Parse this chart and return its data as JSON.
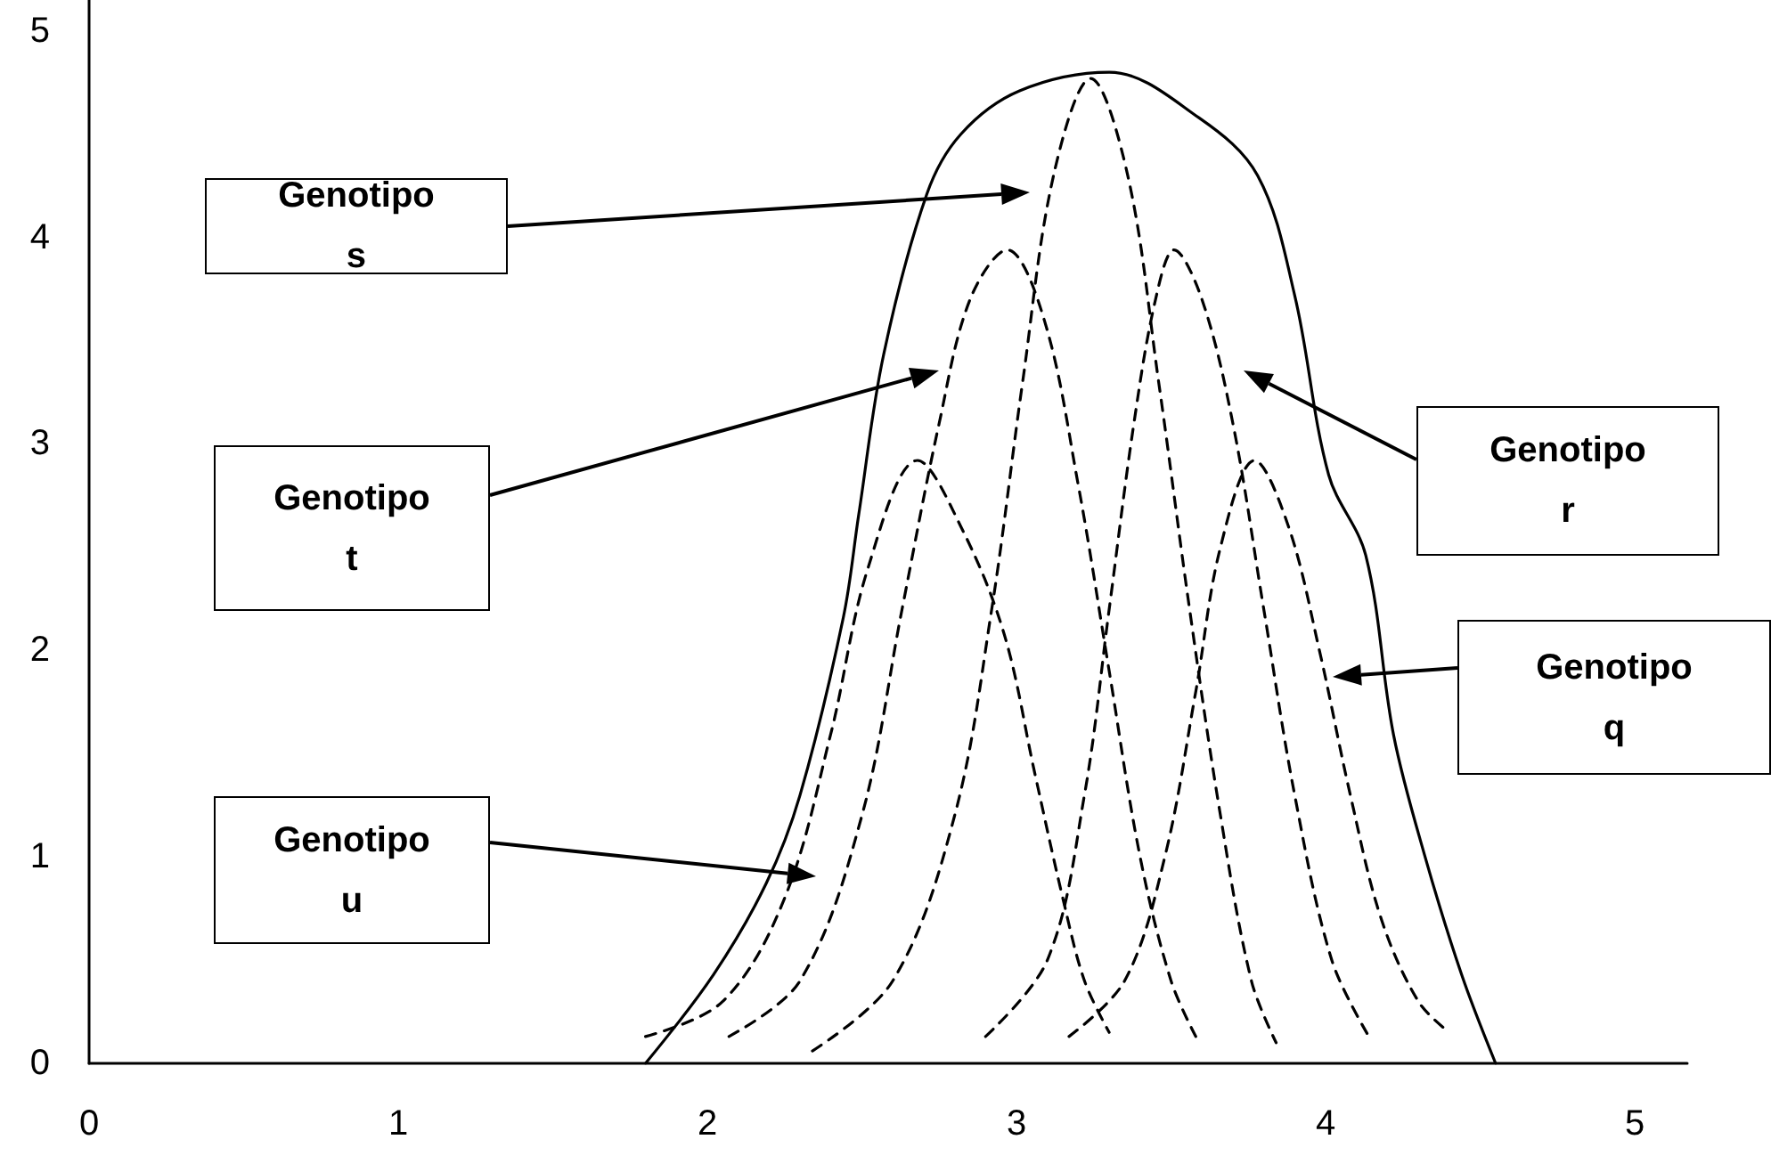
{
  "chart_data": {
    "type": "line",
    "xlim": [
      0,
      5.17
    ],
    "ylim": [
      0,
      5.15
    ],
    "xticks": [
      0,
      1,
      2,
      3,
      4,
      5
    ],
    "yticks": [
      0,
      1,
      2,
      3,
      4,
      5
    ],
    "grid": false,
    "marker": "none",
    "series": [
      {
        "color": "#000000",
        "line_style": "solid",
        "x": [
          1.8,
          2.02,
          2.19,
          2.3,
          2.44,
          2.49,
          2.57,
          2.71,
          2.82,
          3.01,
          3.3,
          3.59,
          3.78,
          3.9,
          4.01,
          4.13,
          4.22,
          4.32,
          4.44,
          4.55
        ],
        "values": [
          0,
          0.43,
          0.87,
          1.3,
          2.16,
          2.66,
          3.43,
          4.21,
          4.5,
          4.71,
          4.8,
          4.58,
          4.3,
          3.72,
          2.85,
          2.46,
          1.59,
          1.01,
          0.43,
          0
        ]
      },
      {
        "color": "#000000",
        "line_style": "dashed",
        "x": [
          1.8,
          2.05,
          2.25,
          2.4,
          2.52,
          2.68,
          2.82,
          2.96,
          3.06,
          3.15,
          3.22,
          3.3
        ],
        "values": [
          0.13,
          0.3,
          0.8,
          1.6,
          2.4,
          2.92,
          2.6,
          2.08,
          1.4,
          0.8,
          0.4,
          0.15
        ]
      },
      {
        "color": "#000000",
        "line_style": "dashed",
        "x": [
          2.07,
          2.3,
          2.5,
          2.63,
          2.75,
          2.85,
          2.97,
          3.09,
          3.2,
          3.3,
          3.4,
          3.5,
          3.58
        ],
        "values": [
          0.13,
          0.4,
          1.2,
          2.2,
          3.1,
          3.7,
          3.94,
          3.6,
          2.8,
          1.9,
          1.0,
          0.4,
          0.13
        ]
      },
      {
        "color": "#000000",
        "line_style": "dashed",
        "x": [
          2.34,
          2.6,
          2.8,
          2.92,
          3.02,
          3.12,
          3.24,
          3.36,
          3.46,
          3.56,
          3.66,
          3.76,
          3.84
        ],
        "values": [
          0.06,
          0.4,
          1.2,
          2.2,
          3.3,
          4.3,
          4.77,
          4.3,
          3.3,
          2.2,
          1.2,
          0.4,
          0.1
        ]
      },
      {
        "color": "#000000",
        "line_style": "dashed",
        "x": [
          2.9,
          3.1,
          3.22,
          3.3,
          3.38,
          3.45,
          3.51,
          3.6,
          3.7,
          3.8,
          3.9,
          4.02,
          4.14
        ],
        "values": [
          0.13,
          0.5,
          1.3,
          2.2,
          3.1,
          3.7,
          3.94,
          3.7,
          3.1,
          2.2,
          1.3,
          0.5,
          0.13
        ]
      },
      {
        "color": "#000000",
        "line_style": "dashed",
        "x": [
          3.17,
          3.35,
          3.48,
          3.58,
          3.66,
          3.77,
          3.88,
          3.98,
          4.08,
          4.18,
          4.3,
          4.4
        ],
        "values": [
          0.13,
          0.4,
          1.0,
          1.8,
          2.5,
          2.92,
          2.6,
          2.0,
          1.3,
          0.7,
          0.3,
          0.15
        ]
      }
    ],
    "annotations": [
      "Genotipo s",
      "Genotipo t",
      "Genotipo u",
      "Genotipo r",
      "Genotipo q"
    ]
  }
}
